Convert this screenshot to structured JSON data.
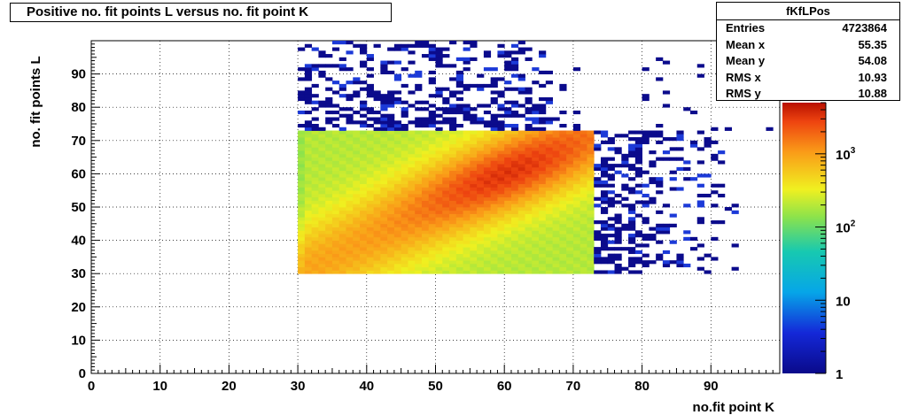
{
  "chart_data": {
    "type": "heatmap",
    "title": "Positive no. fit points L versus no. fit point K",
    "xlabel": "no.fit point K",
    "ylabel": "no. fit points  L",
    "xlim": [
      0,
      100
    ],
    "ylim": [
      0,
      100
    ],
    "x_ticks": [
      "0",
      "10",
      "20",
      "30",
      "40",
      "50",
      "60",
      "70",
      "80",
      "90"
    ],
    "y_ticks": [
      "0",
      "10",
      "20",
      "30",
      "40",
      "50",
      "60",
      "70",
      "80",
      "90"
    ],
    "colorbar": {
      "scale": "log",
      "range": [
        1,
        5000
      ],
      "ticks": [
        "1",
        "10",
        "10^2",
        "10^3"
      ]
    },
    "grid": true,
    "dense_region": {
      "x_range": [
        30,
        73
      ],
      "y_range": [
        30,
        73
      ]
    },
    "ridge_peak": {
      "x": 61,
      "y": 60
    }
  },
  "stats": {
    "name": "fKfLPos",
    "rows": [
      {
        "label": "Entries",
        "value": "4723864"
      },
      {
        "label": "Mean x",
        "value": "55.35"
      },
      {
        "label": "Mean y",
        "value": "54.08"
      },
      {
        "label": "RMS x",
        "value": "10.93"
      },
      {
        "label": "RMS y",
        "value": "10.88"
      }
    ]
  }
}
